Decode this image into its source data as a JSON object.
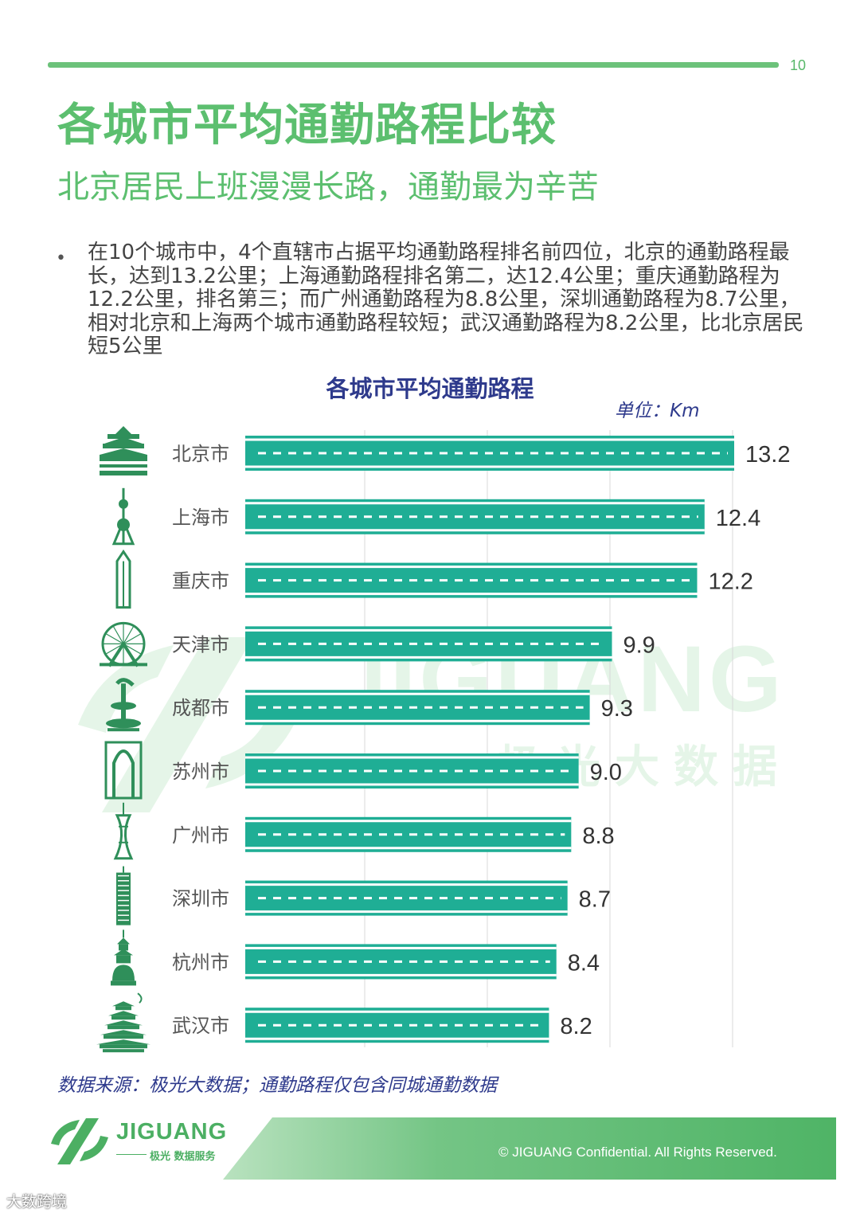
{
  "page_number": "10",
  "title": "各城市平均通勤路程比较",
  "subtitle": "北京居民上班漫漫长路，通勤最为辛苦",
  "bullet_symbol": "•",
  "paragraph": "在10个城市中，4个直辖市占据平均通勤路程排名前四位，北京的通勤路程最长，达到13.2公里；上海通勤路程排名第二，达12.4公里；重庆通勤路程为12.2公里，排名第三；而广州通勤路程为8.8公里，深圳通勤路程为8.7公里，相对北京和上海两个城市通勤路程较短；武汉通勤路程为8.2公里，比北京居民短5公里",
  "chart_data": {
    "type": "bar",
    "orientation": "horizontal",
    "title": "各城市平均通勤路程",
    "unit": "单位：Km",
    "categories": [
      "北京市",
      "上海市",
      "重庆市",
      "天津市",
      "成都市",
      "苏州市",
      "广州市",
      "深圳市",
      "杭州市",
      "武汉市"
    ],
    "values": [
      13.2,
      12.4,
      12.2,
      9.9,
      9.3,
      9.0,
      8.8,
      8.7,
      8.4,
      8.2
    ],
    "value_labels": [
      "13.2",
      "12.4",
      "12.2",
      "9.9",
      "9.3",
      "9.0",
      "8.8",
      "8.7",
      "8.4",
      "8.2"
    ],
    "icons": [
      "temple-of-heaven-icon",
      "oriental-pearl-tower-icon",
      "chongqing-tower-icon",
      "tianjin-eye-icon",
      "chengdu-monument-icon",
      "suzhou-gate-icon",
      "canton-tower-icon",
      "shenzhen-building-icon",
      "leifeng-pagoda-icon",
      "yellow-crane-tower-icon"
    ],
    "bar_color": "#1fae95",
    "grid": true,
    "legend": "none"
  },
  "source": "数据来源：极光大数据；通勤路程仅包含同城通勤数据",
  "watermark": {
    "text": "JIGUANG",
    "cn": "极光大数据"
  },
  "footer": {
    "logo_text": "JIGUANG",
    "logo_sub": "极光 数据服务",
    "copyright": "© JIGUANG Confidential. All Rights Reserved."
  },
  "corner_watermark": "大数跨境",
  "colors": {
    "accent": "#5cbf6f",
    "navy": "#2e3a8c",
    "bar": "#1fae95"
  }
}
